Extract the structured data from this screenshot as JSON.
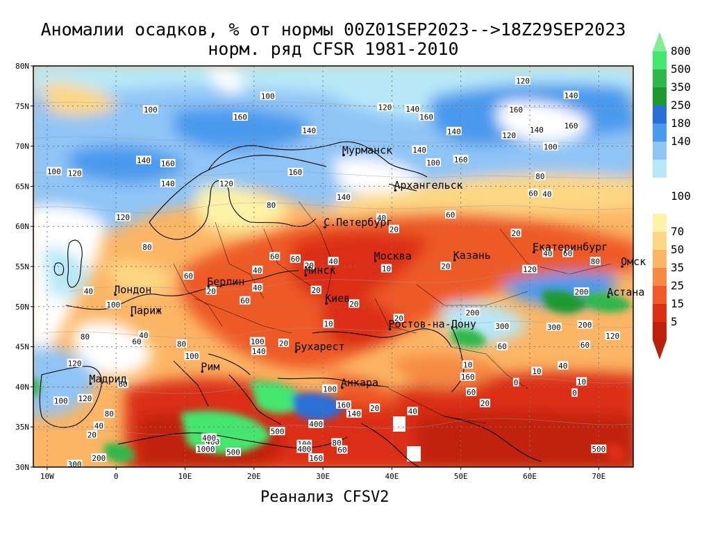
{
  "title_line1": "Аномалии осадков, % от нормы 00Z01SEP2023-->18Z29SEP2023",
  "title_line2": "норм. ряд CFSR 1981-2010",
  "footer": "Реанализ CFSV2",
  "lat_labels": [
    "80N",
    "75N",
    "70N",
    "65N",
    "60N",
    "55N",
    "50N",
    "45N",
    "40N",
    "35N",
    "30N"
  ],
  "lon_labels": [
    "10W",
    "0",
    "10E",
    "20E",
    "30E",
    "40E",
    "50E",
    "60E",
    "70E"
  ],
  "colorbar": {
    "upper": [
      {
        "label": "800",
        "color": "#44e66e"
      },
      {
        "label": "500",
        "color": "#2eb84a"
      },
      {
        "label": "350",
        "color": "#1a9a2e"
      },
      {
        "label": "250",
        "color": "#2a6fd6"
      },
      {
        "label": "180",
        "color": "#4a9aee"
      },
      {
        "label": "140",
        "color": "#8fc4f6"
      },
      {
        "label": "",
        "color": "#b8e8f8"
      }
    ],
    "mid_label": "100",
    "lower": [
      {
        "label": "70",
        "color": "#fdf3a6"
      },
      {
        "label": "50",
        "color": "#fdd783"
      },
      {
        "label": "35",
        "color": "#fbb564"
      },
      {
        "label": "25",
        "color": "#f68a43"
      },
      {
        "label": "15",
        "color": "#ee5a28"
      },
      {
        "label": "5",
        "color": "#dc2e12"
      },
      {
        "label": "",
        "color": "#c02008"
      }
    ],
    "top_arrow_color": "#7ff08f",
    "bottom_arrow_color": "#b8210a"
  },
  "cities": [
    {
      "name": "Мурманск",
      "lon": 33.0,
      "lat": 68.9
    },
    {
      "name": "Архангельск",
      "lon": 40.5,
      "lat": 64.5
    },
    {
      "name": "С.Петербург",
      "lon": 30.3,
      "lat": 59.9
    },
    {
      "name": "Москва",
      "lon": 37.6,
      "lat": 55.7
    },
    {
      "name": "Казань",
      "lon": 49.1,
      "lat": 55.8
    },
    {
      "name": "Екатеринбург",
      "lon": 60.6,
      "lat": 56.8
    },
    {
      "name": "Минск",
      "lon": 27.5,
      "lat": 53.9
    },
    {
      "name": "Берлин",
      "lon": 13.4,
      "lat": 52.5
    },
    {
      "name": "Лондон",
      "lon": -0.1,
      "lat": 51.5
    },
    {
      "name": "Париж",
      "lon": 2.3,
      "lat": 48.9
    },
    {
      "name": "Киев",
      "lon": 30.5,
      "lat": 50.4
    },
    {
      "name": "Омск",
      "lon": 73.4,
      "lat": 55.0
    },
    {
      "name": "Астана",
      "lon": 71.4,
      "lat": 51.2
    },
    {
      "name": "Ростов-на-Дону",
      "lon": 39.7,
      "lat": 47.2
    },
    {
      "name": "Бухарест",
      "lon": 26.1,
      "lat": 44.4
    },
    {
      "name": "Рим",
      "lon": 12.5,
      "lat": 41.9
    },
    {
      "name": "Мадрид",
      "lon": -3.7,
      "lat": 40.4
    },
    {
      "name": "Анкара",
      "lon": 32.8,
      "lat": 39.9
    }
  ],
  "contour_labels": [
    {
      "t": "100",
      "lon": 22,
      "lat": 76.2
    },
    {
      "t": "120",
      "lon": 39,
      "lat": 74.8
    },
    {
      "t": "140",
      "lon": 43,
      "lat": 74.6
    },
    {
      "t": "160",
      "lon": 45,
      "lat": 73.6
    },
    {
      "t": "160",
      "lon": 18,
      "lat": 73.6
    },
    {
      "t": "100",
      "lon": 5,
      "lat": 74.5
    },
    {
      "t": "140",
      "lon": 28,
      "lat": 71.9
    },
    {
      "t": "140",
      "lon": 49,
      "lat": 71.8
    },
    {
      "t": "160",
      "lon": 58,
      "lat": 74.5
    },
    {
      "t": "140",
      "lon": 66,
      "lat": 76.3
    },
    {
      "t": "120",
      "lon": 59,
      "lat": 78.1
    },
    {
      "t": "160",
      "lon": 66,
      "lat": 72.5
    },
    {
      "t": "140",
      "lon": 61,
      "lat": 72
    },
    {
      "t": "120",
      "lon": 57,
      "lat": 71.3
    },
    {
      "t": "100",
      "lon": 63,
      "lat": 69.9
    },
    {
      "t": "140",
      "lon": 44,
      "lat": 69.5
    },
    {
      "t": "100",
      "lon": 46,
      "lat": 67.9
    },
    {
      "t": "160",
      "lon": 50,
      "lat": 68.3
    },
    {
      "t": "140",
      "lon": 4,
      "lat": 68.2
    },
    {
      "t": "160",
      "lon": 7.5,
      "lat": 67.8
    },
    {
      "t": "120",
      "lon": -6,
      "lat": 66.6
    },
    {
      "t": "100",
      "lon": -9,
      "lat": 66.8
    },
    {
      "t": "160",
      "lon": 26,
      "lat": 66.7
    },
    {
      "t": "140",
      "lon": 33,
      "lat": 63.6
    },
    {
      "t": "140",
      "lon": 7.5,
      "lat": 65.3
    },
    {
      "t": "120",
      "lon": 16,
      "lat": 65.3
    },
    {
      "t": "80",
      "lon": 22.5,
      "lat": 62.6
    },
    {
      "t": "60",
      "lon": 48.5,
      "lat": 61.4
    },
    {
      "t": "40",
      "lon": 38.5,
      "lat": 61
    },
    {
      "t": "20",
      "lon": 40.3,
      "lat": 59.6
    },
    {
      "t": "20",
      "lon": 58,
      "lat": 59.1
    },
    {
      "t": "60",
      "lon": 60.5,
      "lat": 64.1
    },
    {
      "t": "40",
      "lon": 62.5,
      "lat": 64
    },
    {
      "t": "80",
      "lon": 61.5,
      "lat": 66.2
    },
    {
      "t": "120",
      "lon": 1,
      "lat": 61.1
    },
    {
      "t": "80",
      "lon": 4.5,
      "lat": 57.4
    },
    {
      "t": "60",
      "lon": 23,
      "lat": 56.2
    },
    {
      "t": "40",
      "lon": 20.5,
      "lat": 54.5
    },
    {
      "t": "60",
      "lon": 10.5,
      "lat": 53.8
    },
    {
      "t": "40",
      "lon": 20.5,
      "lat": 52.3
    },
    {
      "t": "20",
      "lon": 13.8,
      "lat": 51.9
    },
    {
      "t": "60",
      "lon": 18.7,
      "lat": 50.7
    },
    {
      "t": "20",
      "lon": 29,
      "lat": 52
    },
    {
      "t": "10",
      "lon": 39.2,
      "lat": 54.7
    },
    {
      "t": "20",
      "lon": 47.8,
      "lat": 55
    },
    {
      "t": "40",
      "lon": 62.6,
      "lat": 56.6
    },
    {
      "t": "60",
      "lon": 65.5,
      "lat": 56.6
    },
    {
      "t": "120",
      "lon": 60,
      "lat": 54.6
    },
    {
      "t": "80",
      "lon": 69.5,
      "lat": 55.6
    },
    {
      "t": "20",
      "lon": 34.5,
      "lat": 50.3
    },
    {
      "t": "10",
      "lon": 30.8,
      "lat": 47.8
    },
    {
      "t": "20",
      "lon": 41,
      "lat": 48.5
    },
    {
      "t": "200",
      "lon": 67.5,
      "lat": 51.8
    },
    {
      "t": "200",
      "lon": 68,
      "lat": 47.7
    },
    {
      "t": "300",
      "lon": 63.5,
      "lat": 47.4
    },
    {
      "t": "300",
      "lon": 56,
      "lat": 47.5
    },
    {
      "t": "200",
      "lon": 51.7,
      "lat": 49.2
    },
    {
      "t": "120",
      "lon": 72,
      "lat": 46.3
    },
    {
      "t": "60",
      "lon": 68,
      "lat": 45.2
    },
    {
      "t": "60",
      "lon": 56,
      "lat": 45
    },
    {
      "t": "40",
      "lon": 64.8,
      "lat": 42.6
    },
    {
      "t": "10",
      "lon": 61,
      "lat": 41.9
    },
    {
      "t": "10",
      "lon": 51,
      "lat": 42.7
    },
    {
      "t": "20",
      "lon": 24.3,
      "lat": 45.4
    },
    {
      "t": "100",
      "lon": 20.5,
      "lat": 45.6
    },
    {
      "t": "140",
      "lon": 20.7,
      "lat": 44.4
    },
    {
      "t": "40",
      "lon": -4,
      "lat": 51.9
    },
    {
      "t": "100",
      "lon": -0.4,
      "lat": 50.2
    },
    {
      "t": "80",
      "lon": -4.5,
      "lat": 46.2
    },
    {
      "t": "60",
      "lon": 3,
      "lat": 45.6
    },
    {
      "t": "40",
      "lon": 4,
      "lat": 46.4
    },
    {
      "t": "80",
      "lon": 9.5,
      "lat": 45.3
    },
    {
      "t": "100",
      "lon": 11,
      "lat": 43.8
    },
    {
      "t": "120",
      "lon": -6,
      "lat": 42.9
    },
    {
      "t": "60",
      "lon": 1,
      "lat": 40.3
    },
    {
      "t": "120",
      "lon": -4.5,
      "lat": 38.5
    },
    {
      "t": "100",
      "lon": -8,
      "lat": 38.2
    },
    {
      "t": "80",
      "lon": -1,
      "lat": 36.6
    },
    {
      "t": "40",
      "lon": -2.5,
      "lat": 35.1
    },
    {
      "t": "20",
      "lon": -3.5,
      "lat": 34
    },
    {
      "t": "200",
      "lon": -2.5,
      "lat": 31.1
    },
    {
      "t": "300",
      "lon": -6,
      "lat": 30.3
    },
    {
      "t": "400",
      "lon": 14,
      "lat": 33.1
    },
    {
      "t": "1000",
      "lon": 13,
      "lat": 32.2
    },
    {
      "t": "500",
      "lon": 17,
      "lat": 31.8
    },
    {
      "t": "100",
      "lon": 31,
      "lat": 39.7
    },
    {
      "t": "160",
      "lon": 33,
      "lat": 37.7
    },
    {
      "t": "140",
      "lon": 34.5,
      "lat": 36.6
    },
    {
      "t": "20",
      "lon": 37.5,
      "lat": 37.3
    },
    {
      "t": "40",
      "lon": 43,
      "lat": 36.9
    },
    {
      "t": "400",
      "lon": 29,
      "lat": 35.3
    },
    {
      "t": "500",
      "lon": 23.4,
      "lat": 34.4
    },
    {
      "t": "100",
      "lon": 27.3,
      "lat": 32.8
    },
    {
      "t": "400",
      "lon": 27.3,
      "lat": 32.2
    },
    {
      "t": "80",
      "lon": 32,
      "lat": 33
    },
    {
      "t": "60",
      "lon": 32.8,
      "lat": 32.1
    },
    {
      "t": "160",
      "lon": 29,
      "lat": 31.1
    },
    {
      "t": "400",
      "lon": 13.5,
      "lat": 33.6
    },
    {
      "t": "160",
      "lon": 51,
      "lat": 41.2
    },
    {
      "t": "60",
      "lon": 51.5,
      "lat": 39.3
    },
    {
      "t": "20",
      "lon": 53.5,
      "lat": 37.9
    },
    {
      "t": "0",
      "lon": 58,
      "lat": 40.5
    },
    {
      "t": "10",
      "lon": 67.5,
      "lat": 40.6
    },
    {
      "t": "0",
      "lon": 66.5,
      "lat": 39.2
    },
    {
      "t": "500",
      "lon": 70,
      "lat": 32.2
    },
    {
      "t": "20",
      "lon": 28,
      "lat": 55.1
    },
    {
      "t": "40",
      "lon": 31.5,
      "lat": 55.6
    },
    {
      "t": "60",
      "lon": 26,
      "lat": 55.9
    }
  ]
}
